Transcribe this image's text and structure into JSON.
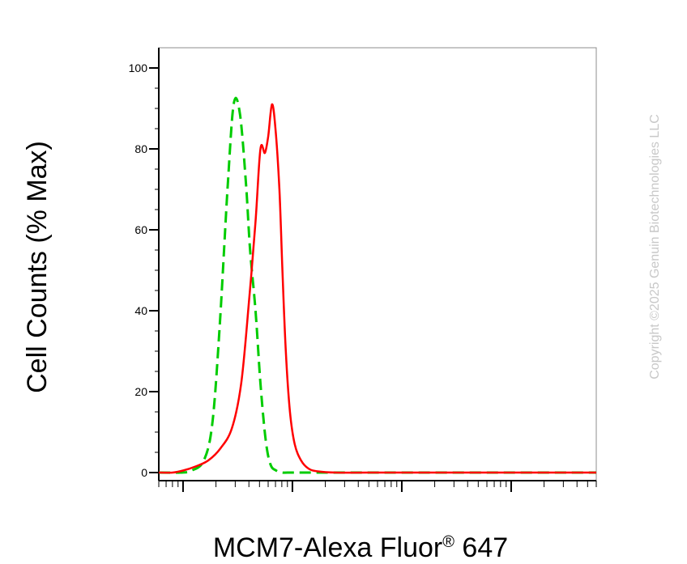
{
  "chart_data": {
    "type": "line",
    "title": "",
    "xlabel_main": "MCM7-Alexa Fluor",
    "xlabel_reg": "®",
    "xlabel_tail": " 647",
    "ylabel": "Cell Counts (% Max)",
    "watermark": "Copyright ©2025 Genuin Biotechnologies LLC",
    "xscale": "log",
    "xlim": [
      0.6,
      6000
    ],
    "ylim": [
      -2,
      105
    ],
    "yticks": [
      {
        "value": 0,
        "label": "0"
      },
      {
        "value": 20,
        "label": "20"
      },
      {
        "value": 40,
        "label": "40"
      },
      {
        "value": 60,
        "label": "60"
      },
      {
        "value": 80,
        "label": "80"
      },
      {
        "value": 100,
        "label": "100"
      }
    ],
    "x_major_ticks": [
      1,
      10,
      100,
      1000
    ],
    "grid": false,
    "legend": "none",
    "series": [
      {
        "color": "#00cc00",
        "style": "dashed",
        "x": [
          0.6,
          0.95,
          1.2,
          1.55,
          1.85,
          2.15,
          2.55,
          2.9,
          3.3,
          3.75,
          4.1,
          4.6,
          5.1,
          5.7,
          6.3,
          7.1,
          8.0,
          9.0,
          11.0,
          13.0,
          18.0,
          30.0,
          100.0,
          1000.0,
          6000.0
        ],
        "y": [
          0,
          0,
          0.5,
          3,
          12,
          35,
          70,
          91,
          89,
          72,
          55,
          40,
          22,
          8,
          2,
          0.5,
          0,
          0,
          0,
          0,
          0,
          0,
          0,
          0,
          0
        ]
      },
      {
        "color": "#ff0000",
        "style": "solid",
        "x": [
          0.6,
          0.8,
          1.0,
          1.3,
          1.7,
          2.2,
          2.8,
          3.4,
          4.0,
          4.6,
          5.1,
          5.6,
          6.0,
          6.5,
          7.0,
          7.6,
          8.1,
          8.7,
          9.5,
          10.5,
          12.0,
          14.0,
          17.0,
          25.0,
          50.0,
          200.0,
          1000.0,
          6000.0
        ],
        "y": [
          0,
          0,
          0.5,
          1.5,
          3,
          6,
          11,
          22,
          42,
          62,
          80,
          79,
          83,
          91,
          85,
          70,
          50,
          30,
          15,
          7,
          3,
          1,
          0.3,
          0,
          0,
          0,
          0,
          0
        ]
      }
    ]
  }
}
